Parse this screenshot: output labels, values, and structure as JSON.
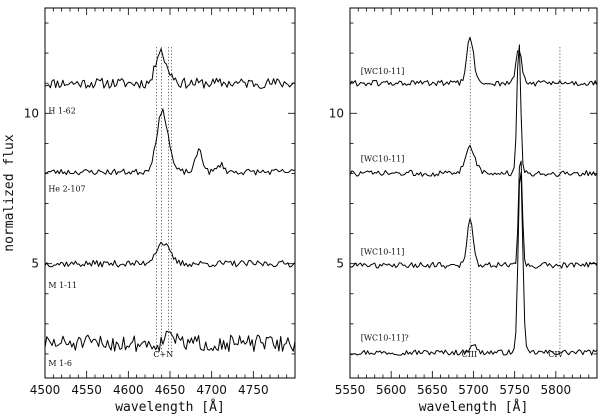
{
  "chart_data": [
    {
      "type": "line",
      "xlabel": "wavelength [Å]",
      "ylabel": "normalized flux",
      "xlim": [
        4500,
        4800
      ],
      "ylim": [
        1.2,
        13.5
      ],
      "xticks": [
        "4500",
        "4550",
        "4600",
        "4650",
        "4700",
        "4750"
      ],
      "xtick_values": [
        4500,
        4550,
        4600,
        4650,
        4700,
        4750
      ],
      "yticks": [
        "5",
        "10"
      ],
      "ytick_values": [
        5,
        10
      ],
      "series": [
        {
          "name": "H 1-62",
          "label_at": [
            4504,
            10.0
          ],
          "baseline": 11.0,
          "features": [
            [
              4638,
              1.15,
              5
            ],
            [
              4650,
              0.3,
              5
            ]
          ],
          "noise": 0.35,
          "seed": 11
        },
        {
          "name": "He 2-107",
          "label_at": [
            4504,
            7.4
          ],
          "baseline": 8.05,
          "features": [
            [
              4641,
              2.0,
              7
            ],
            [
              4685,
              0.75,
              4
            ],
            [
              4711,
              0.25,
              4
            ]
          ],
          "noise": 0.2,
          "seed": 23
        },
        {
          "name": "M 1-11",
          "label_at": [
            4504,
            4.2
          ],
          "baseline": 5.0,
          "features": [
            [
              4641,
              0.7,
              8
            ]
          ],
          "noise": 0.22,
          "seed": 37
        },
        {
          "name": "M 1-6",
          "label_at": [
            4504,
            1.6
          ],
          "baseline": 2.35,
          "features": [
            [
              4650,
              0.55,
              4
            ]
          ],
          "noise": 0.55,
          "seed": 51
        }
      ],
      "line_marks": [
        {
          "label": "C+N",
          "x": [
            4634,
            4640,
            4648,
            4652
          ],
          "label_at": [
            4642,
            1.9
          ]
        }
      ]
    },
    {
      "type": "line",
      "xlabel": "wavelength [Å]",
      "ylabel": "",
      "xlim": [
        5550,
        5850
      ],
      "ylim": [
        1.2,
        13.5
      ],
      "xticks": [
        "5550",
        "5600",
        "5650",
        "5700",
        "5750",
        "5800"
      ],
      "xtick_values": [
        5550,
        5600,
        5650,
        5700,
        5750,
        5800
      ],
      "yticks": [
        "5",
        "10"
      ],
      "ytick_values": [
        5,
        10
      ],
      "series": [
        {
          "name": "[WC10-11]",
          "label_at": [
            5563,
            11.3
          ],
          "baseline": 11.0,
          "features": [
            [
              5696,
              1.55,
              4
            ],
            [
              5755,
              1.1,
              3.5
            ]
          ],
          "noise": 0.2,
          "seed": 61
        },
        {
          "name": "[WC10-11]",
          "label_at": [
            5563,
            8.4
          ],
          "baseline": 8.0,
          "features": [
            [
              5696,
              0.9,
              6
            ],
            [
              5755,
              4.4,
              2.2
            ]
          ],
          "noise": 0.2,
          "seed": 73
        },
        {
          "name": "[WC10-11]",
          "label_at": [
            5563,
            5.3
          ],
          "baseline": 4.95,
          "features": [
            [
              5696,
              1.55,
              3.5
            ],
            [
              5757,
              3.8,
              2.2
            ]
          ],
          "noise": 0.2,
          "seed": 87
        },
        {
          "name": "[WC10-11]?",
          "label_at": [
            5563,
            2.45
          ],
          "baseline": 2.05,
          "features": [
            [
              5757,
              6.4,
              2.6
            ],
            [
              5699,
              0.3,
              3.5
            ]
          ],
          "noise": 0.18,
          "seed": 97
        }
      ],
      "line_marks": [
        {
          "label": "CIII",
          "x": [
            5696
          ],
          "label_at": [
            5695,
            1.9
          ]
        },
        {
          "label": "CIV",
          "x": [
            5805
          ],
          "label_at": [
            5800,
            1.9
          ]
        }
      ]
    }
  ]
}
